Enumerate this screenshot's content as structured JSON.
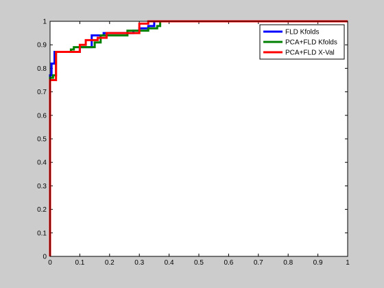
{
  "chart_data": {
    "type": "line",
    "title": "",
    "xlabel": "",
    "ylabel": "",
    "xlim": [
      0,
      1
    ],
    "ylim": [
      0,
      1
    ],
    "xticks": [
      "0",
      "0.1",
      "0.2",
      "0.3",
      "0.4",
      "0.5",
      "0.6",
      "0.7",
      "0.8",
      "0.9",
      "1"
    ],
    "yticks": [
      "0",
      "0.1",
      "0.2",
      "0.3",
      "0.4",
      "0.5",
      "0.6",
      "0.7",
      "0.8",
      "0.9",
      "1"
    ],
    "grid": false,
    "legend_position": "top-right",
    "series": [
      {
        "name": "FLD Kfolds",
        "color": "#0000ff",
        "x": [
          0,
          0,
          0.005,
          0.005,
          0.015,
          0.015,
          0.1,
          0.1,
          0.14,
          0.14,
          0.18,
          0.18,
          0.28,
          0.28,
          0.3,
          0.3,
          0.33,
          0.33,
          0.35,
          0.35,
          1
        ],
        "y": [
          0,
          0.77,
          0.77,
          0.82,
          0.82,
          0.87,
          0.87,
          0.89,
          0.89,
          0.94,
          0.94,
          0.95,
          0.95,
          0.96,
          0.96,
          0.97,
          0.97,
          0.98,
          0.98,
          1.0,
          1.0
        ]
      },
      {
        "name": "PCA+FLD Kfolds",
        "color": "#008000",
        "x": [
          0,
          0,
          0.01,
          0.01,
          0.02,
          0.02,
          0.07,
          0.07,
          0.08,
          0.08,
          0.15,
          0.15,
          0.17,
          0.17,
          0.26,
          0.26,
          0.33,
          0.33,
          0.36,
          0.36,
          0.37,
          0.37,
          1
        ],
        "y": [
          0,
          0.76,
          0.76,
          0.77,
          0.77,
          0.87,
          0.87,
          0.88,
          0.88,
          0.89,
          0.89,
          0.91,
          0.91,
          0.94,
          0.94,
          0.96,
          0.96,
          0.97,
          0.97,
          0.98,
          0.98,
          1.0,
          1.0
        ]
      },
      {
        "name": "PCA+FLD X-Val",
        "color": "#ff0000",
        "x": [
          0,
          0,
          0.02,
          0.02,
          0.1,
          0.1,
          0.12,
          0.12,
          0.16,
          0.16,
          0.19,
          0.19,
          0.3,
          0.3,
          0.33,
          0.33,
          1
        ],
        "y": [
          0,
          0.75,
          0.75,
          0.87,
          0.87,
          0.9,
          0.9,
          0.92,
          0.92,
          0.93,
          0.93,
          0.95,
          0.95,
          0.99,
          0.99,
          1.0,
          1.0
        ]
      }
    ]
  }
}
